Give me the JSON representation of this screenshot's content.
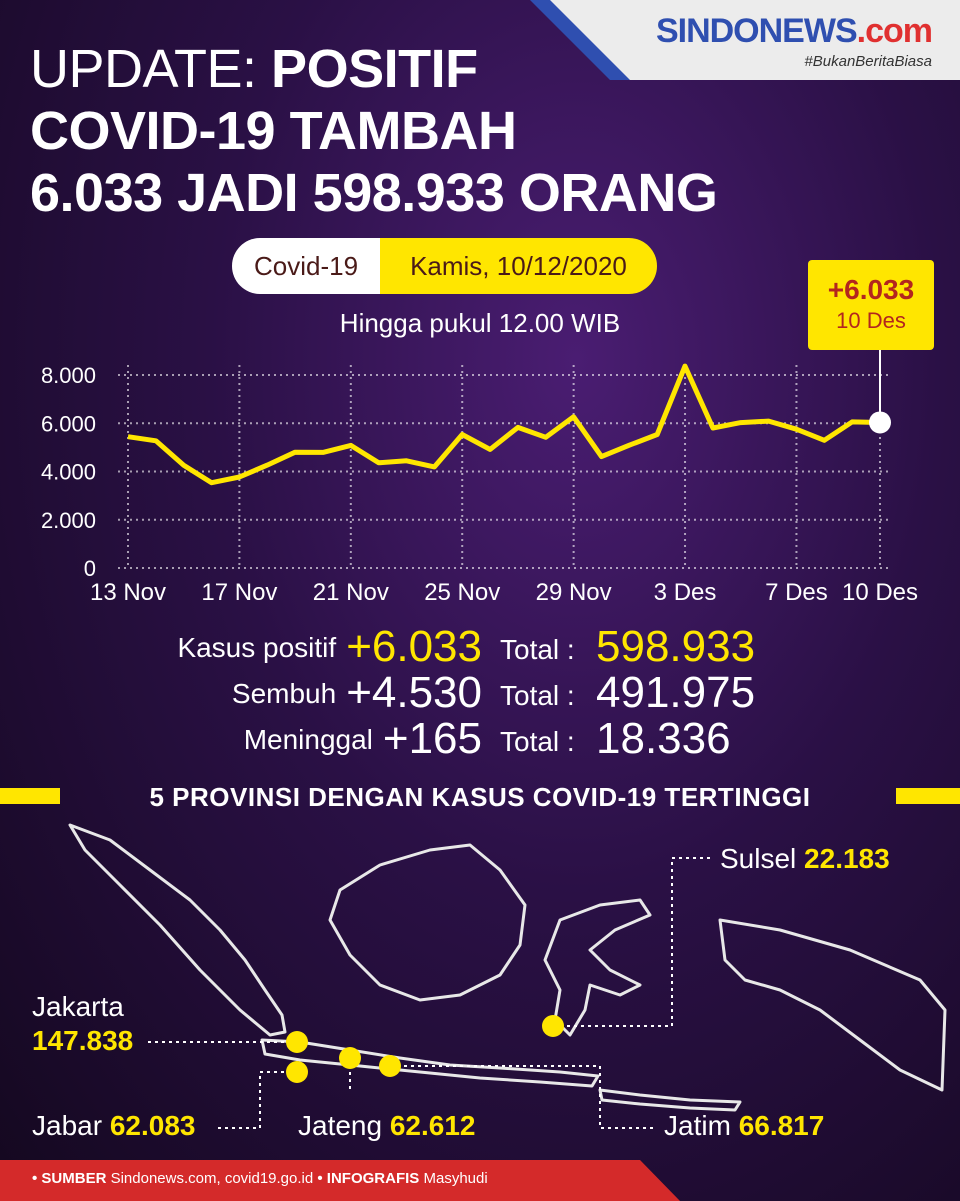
{
  "header": {
    "title_line1_a": "UPDATE:",
    "title_line1_b": "POSITIF",
    "title_line2": "COVID-19 TAMBAH",
    "title_line3": "6.033 JADI 598.933 ORANG",
    "brand_logo": "SINDONEWS",
    "brand_com": ".com",
    "brand_tag": "#BukanBeritaBiasa"
  },
  "info": {
    "pill_left": "Covid-19",
    "pill_right": "Kamis, 10/12/2020",
    "subtitle": "Hingga pukul 12.00 WIB",
    "callout_value": "+6.033",
    "callout_date": "10 Des"
  },
  "chart_data": {
    "type": "line",
    "x_tick_labels": [
      "13 Nov",
      "17 Nov",
      "21 Nov",
      "25 Nov",
      "29 Nov",
      "3 Des",
      "7 Des",
      "10 Des"
    ],
    "x_tick_index": [
      0,
      4,
      8,
      12,
      16,
      20,
      24,
      27
    ],
    "y_tick_labels": [
      "0",
      "2.000",
      "4.000",
      "6.000",
      "8.000"
    ],
    "y_tick_values": [
      0,
      2000,
      4000,
      6000,
      8000
    ],
    "ylim": [
      0,
      8000
    ],
    "x": [
      "13 Nov",
      "14 Nov",
      "15 Nov",
      "16 Nov",
      "17 Nov",
      "18 Nov",
      "19 Nov",
      "20 Nov",
      "21 Nov",
      "22 Nov",
      "23 Nov",
      "24 Nov",
      "25 Nov",
      "26 Nov",
      "27 Nov",
      "28 Nov",
      "29 Nov",
      "30 Nov",
      "1 Des",
      "2 Des",
      "3 Des",
      "4 Des",
      "5 Des",
      "6 Des",
      "7 Des",
      "8 Des",
      "9 Des",
      "10 Des"
    ],
    "values": [
      5444,
      5272,
      4262,
      3535,
      3770,
      4265,
      4798,
      4792,
      5082,
      4360,
      4442,
      4192,
      5534,
      4917,
      5828,
      5418,
      6267,
      4617,
      5092,
      5533,
      8369,
      5803,
      6027,
      6089,
      5754,
      5292,
      6058,
      6033
    ],
    "grid": true,
    "highlight_last": true
  },
  "stats": {
    "rows": [
      {
        "label": "Kasus positif",
        "delta": "+6.033",
        "total_label": "Total :",
        "total": "598.933",
        "highlight": true
      },
      {
        "label": "Sembuh",
        "delta": "+4.530",
        "total_label": "Total :",
        "total": "491.975",
        "highlight": false
      },
      {
        "label": "Meninggal",
        "delta": "+165",
        "total_label": "Total :",
        "total": "18.336",
        "highlight": false
      }
    ]
  },
  "provinces": {
    "section_title": "5 PROVINSI DENGAN KASUS COVID-19 TERTINGGI",
    "sulsel_name": "Sulsel",
    "sulsel_value": "22.183",
    "jakarta_name": "Jakarta",
    "jakarta_value": "147.838",
    "jabar_name": "Jabar",
    "jabar_value": "62.083",
    "jateng_name": "Jateng",
    "jateng_value": "62.612",
    "jatim_name": "Jatim",
    "jatim_value": "66.817"
  },
  "footer": {
    "sumber_label": "• SUMBER",
    "sumber_text": "Sindonews.com, covid19.go.id",
    "infografis_label": "• INFOGRAFIS",
    "infografis_text": "Masyhudi"
  },
  "colors": {
    "accent": "#ffe600",
    "footer": "#d42a2a",
    "line": "#ffe600"
  }
}
